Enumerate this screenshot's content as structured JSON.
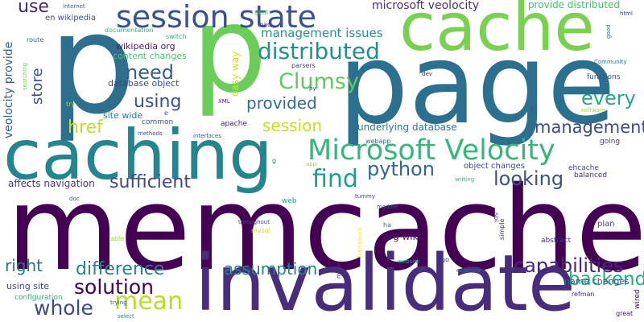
{
  "background": "#ffffff",
  "words": [
    {
      "text": "memcached",
      "color": "#440154"
    },
    {
      "text": "page",
      "color": "#2c6f8e"
    },
    {
      "text": "p",
      "color": "#2e6e8e"
    },
    {
      "text": "p",
      "color": "#6ccd5a"
    },
    {
      "text": "cache",
      "color": "#7ad151"
    },
    {
      "text": "caching",
      "color": "#25848e"
    },
    {
      "text": "invalidate",
      "color": "#472d7b"
    },
    {
      "text": "session state",
      "color": "#3b528b"
    },
    {
      "text": "Microsoft Velocity",
      "color": "#35b779"
    },
    {
      "text": "distributed",
      "color": "#21908d"
    },
    {
      "text": "mean",
      "color": "#b5de2b"
    },
    {
      "text": "solution",
      "color": "#440154"
    },
    {
      "text": "whole",
      "color": "#3e4a89"
    },
    {
      "text": "find",
      "color": "#1f9e89"
    },
    {
      "text": "Clumsy",
      "color": "#5ec962"
    },
    {
      "text": "python",
      "color": "#31688e"
    },
    {
      "text": "capabilities",
      "color": "#482878"
    },
    {
      "text": "backend",
      "color": "#25ab82"
    },
    {
      "text": "difference",
      "color": "#26828e"
    },
    {
      "text": "management",
      "color": "#3e4a89"
    },
    {
      "text": "looking",
      "color": "#3b528b"
    },
    {
      "text": "every",
      "color": "#22a884"
    },
    {
      "text": "need",
      "color": "#35608d"
    },
    {
      "text": "sufficient",
      "color": "#3e4989"
    },
    {
      "text": "session",
      "color": "#c2df23"
    },
    {
      "text": "using",
      "color": "#3b518b"
    },
    {
      "text": "provided",
      "color": "#2c728e"
    },
    {
      "text": "assumption",
      "color": "#26828e"
    },
    {
      "text": "right",
      "color": "#2d708e"
    },
    {
      "text": "href",
      "color": "#bddf26"
    },
    {
      "text": "use",
      "color": "#482777"
    },
    {
      "text": "store",
      "color": "#3d4e8a"
    },
    {
      "text": "management issues",
      "color": "#1f958b"
    },
    {
      "text": "microsoft veolocity",
      "color": "#472f7d"
    },
    {
      "text": "provide distributed",
      "color": "#44bf70"
    },
    {
      "text": "veolocity provide",
      "color": "#34618d"
    },
    {
      "text": "underlying database",
      "color": "#2a788e"
    },
    {
      "text": "affects navigation",
      "color": "#453781"
    },
    {
      "text": "org wiki",
      "color": "#481a6c"
    },
    {
      "text": "object changes",
      "color": "#3f4788"
    },
    {
      "text": "name changes",
      "color": "#3a548c"
    },
    {
      "text": "using site",
      "color": "#3e4c8a"
    },
    {
      "text": "site wide",
      "color": "#287c8e"
    },
    {
      "text": "database object",
      "color": "#3e4989"
    },
    {
      "text": "wikipedia org",
      "color": "#481d6f"
    },
    {
      "text": "content changes",
      "color": "#4cc26c"
    },
    {
      "text": "en wikipedia",
      "color": "#3b518b"
    },
    {
      "text": "easy way",
      "color": "#d2e21b"
    },
    {
      "text": "functions",
      "color": "#3b528b"
    },
    {
      "text": "going",
      "color": "#414287"
    },
    {
      "text": "configuration",
      "color": "#31b57b"
    },
    {
      "text": "ehcache",
      "color": "#3f4788"
    },
    {
      "text": "balanced",
      "color": "#472f7d"
    },
    {
      "text": "apache",
      "color": "#482475"
    },
    {
      "text": "common",
      "color": "#3b528b"
    },
    {
      "text": "documentation",
      "color": "#35b779"
    },
    {
      "text": "parsers",
      "color": "#414487"
    },
    {
      "text": "webapp",
      "color": "#31678e"
    },
    {
      "text": "plan",
      "color": "#404387"
    },
    {
      "text": "abstract",
      "color": "#453781"
    },
    {
      "text": "simple",
      "color": "#472c7a"
    },
    {
      "text": "refman",
      "color": "#46327e"
    },
    {
      "text": "great",
      "color": "#481467"
    },
    {
      "text": "wired",
      "color": "#46085c"
    },
    {
      "text": "mysql",
      "color": "#d0e11c"
    },
    {
      "text": "throughout",
      "color": "#3b528b"
    },
    {
      "text": "able",
      "color": "#95d840"
    },
    {
      "text": "route",
      "color": "#306a8e"
    },
    {
      "text": "searching",
      "color": "#70cf57"
    },
    {
      "text": "internet",
      "color": "#355f8d"
    },
    {
      "text": "goal",
      "color": "#5dc863"
    },
    {
      "text": "load",
      "color": "#443983"
    },
    {
      "text": "switch",
      "color": "#2eb37c"
    },
    {
      "text": "html",
      "color": "#3f4889"
    },
    {
      "text": "good",
      "color": "#32658e"
    },
    {
      "text": "Community",
      "color": "#2a768e"
    },
    {
      "text": "software",
      "color": "#a0da39"
    },
    {
      "text": "interfaces",
      "color": "#3a548c"
    },
    {
      "text": "methods",
      "color": "#3d4d8a"
    },
    {
      "text": "app",
      "color": "#9bd93c"
    },
    {
      "text": "writing",
      "color": "#35b779"
    },
    {
      "text": "module",
      "color": "#3c4f8a"
    },
    {
      "text": "tummy",
      "color": "#3e4a89"
    },
    {
      "text": "web",
      "color": "#22a785"
    },
    {
      "text": "ha",
      "color": "#2d708e"
    },
    {
      "text": "framework",
      "color": "#fde725"
    },
    {
      "text": "website",
      "color": "#1fa088"
    },
    {
      "text": "go",
      "color": "#3e4a89"
    },
    {
      "text": "example",
      "color": "#2c738e"
    },
    {
      "text": "make",
      "color": "#46337f"
    },
    {
      "text": "spi",
      "color": "#433d84"
    },
    {
      "text": "trying",
      "color": "#3b528b"
    },
    {
      "text": "select",
      "color": "#27808e"
    },
    {
      "text": "XML",
      "color": "#481769"
    },
    {
      "text": "py",
      "color": "#3e4989"
    },
    {
      "text": "dev",
      "color": "#46327e"
    },
    {
      "text": "doc",
      "color": "#3a538b"
    },
    {
      "text": "try",
      "color": "#a5db36"
    },
    {
      "text": "en",
      "color": "#3b528b"
    },
    {
      "text": "e",
      "color": "#33638d"
    },
    {
      "text": "g",
      "color": "#25848e"
    }
  ]
}
